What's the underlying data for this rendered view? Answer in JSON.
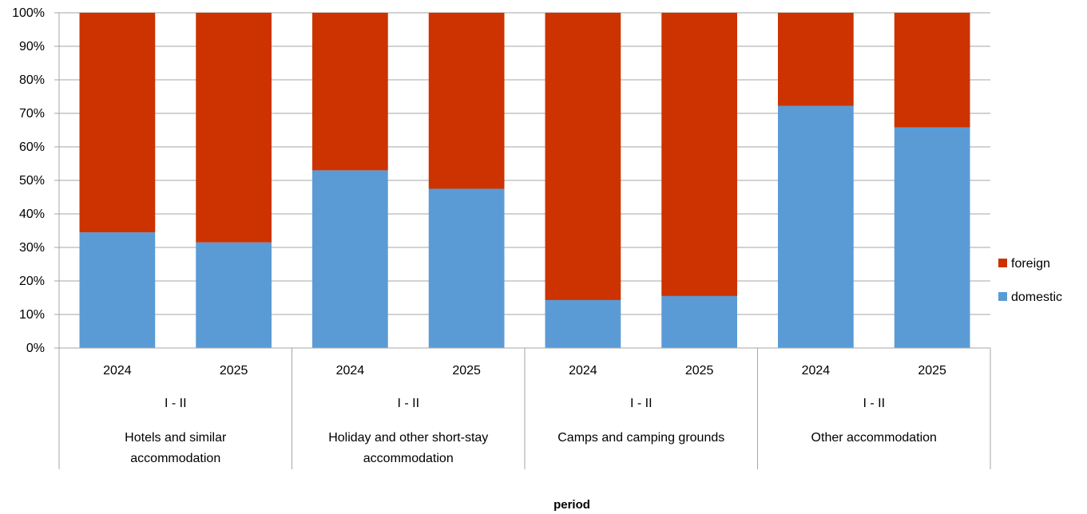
{
  "chart_data": {
    "type": "bar",
    "stacked": true,
    "percent_stacked": true,
    "title": "",
    "xlabel": "period",
    "ylabel": "",
    "ylim": [
      0,
      100
    ],
    "y_ticks": [
      "0%",
      "10%",
      "20%",
      "30%",
      "40%",
      "50%",
      "60%",
      "70%",
      "80%",
      "90%",
      "100%"
    ],
    "grid": true,
    "legend_position": "right",
    "groups": [
      {
        "label": "Hotels and similar accommodation",
        "label_lines": [
          "Hotels and similar",
          "accommodation"
        ],
        "period": "I - II",
        "years": [
          "2024",
          "2025"
        ]
      },
      {
        "label": "Holiday and other short-stay accommodation",
        "label_lines": [
          "Holiday and other short-stay",
          "accommodation"
        ],
        "period": "I - II",
        "years": [
          "2024",
          "2025"
        ]
      },
      {
        "label": "Camps and camping grounds",
        "label_lines": [
          "Camps and camping grounds"
        ],
        "period": "I - II",
        "years": [
          "2024",
          "2025"
        ]
      },
      {
        "label": "Other accommodation",
        "label_lines": [
          "Other accommodation"
        ],
        "period": "I - II",
        "years": [
          "2024",
          "2025"
        ]
      }
    ],
    "series": [
      {
        "name": "domestic",
        "color": "#5b9bd5",
        "values": [
          34.5,
          31.5,
          53,
          47.5,
          14.3,
          15.5,
          72.2,
          65.8
        ]
      },
      {
        "name": "foreign",
        "color": "#cc3300",
        "values": [
          65.5,
          68.5,
          47,
          52.5,
          85.7,
          84.5,
          27.8,
          34.2
        ]
      }
    ],
    "legend_order": [
      "foreign",
      "domestic"
    ]
  }
}
